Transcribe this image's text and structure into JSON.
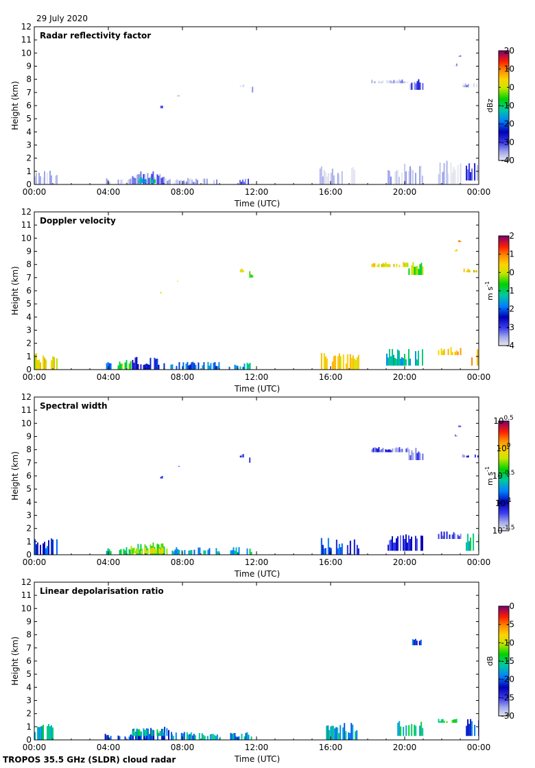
{
  "date": "29 July 2020",
  "footer": "TROPOS 35.5 GHz (SLDR) cloud radar",
  "chart_data": [
    {
      "type": "heatmap",
      "title": "Radar reflectivity factor",
      "xlabel": "Time (UTC)",
      "ylabel": "Height (km)",
      "xlim": [
        0,
        24
      ],
      "ylim": [
        0,
        12
      ],
      "x_ticks": [
        "00:00",
        "04:00",
        "08:00",
        "12:00",
        "16:00",
        "20:00",
        "00:00"
      ],
      "y_ticks": [
        "0",
        "1",
        "2",
        "3",
        "4",
        "5",
        "6",
        "7",
        "8",
        "9",
        "10",
        "11",
        "12"
      ],
      "colorbar": {
        "label": "dBz",
        "ticks": [
          "20",
          "10",
          "0",
          "-10",
          "-20",
          "-30",
          "-40"
        ],
        "range": [
          -40,
          20
        ]
      },
      "regions": [
        {
          "t0": 0.0,
          "t1": 1.2,
          "h0": 0.0,
          "h1": 1.1,
          "c": 0.02
        },
        {
          "t0": 3.8,
          "t1": 4.1,
          "h0": 0.0,
          "h1": 0.5,
          "c": 0.03
        },
        {
          "t0": 4.5,
          "t1": 5.2,
          "h0": 0.0,
          "h1": 0.6,
          "c": 0.05
        },
        {
          "t0": 5.2,
          "t1": 7.0,
          "h0": 0.0,
          "h1": 1.0,
          "c": 0.12
        },
        {
          "t0": 5.6,
          "t1": 6.6,
          "h0": 0.1,
          "h1": 0.6,
          "c": 0.45
        },
        {
          "t0": 7.0,
          "t1": 10.0,
          "h0": 0.0,
          "h1": 0.5,
          "c": 0.03
        },
        {
          "t0": 11.0,
          "t1": 11.7,
          "h0": 0.0,
          "h1": 0.5,
          "c": 0.1
        },
        {
          "t0": 6.8,
          "t1": 6.9,
          "h0": 5.8,
          "h1": 6.0,
          "c": 0.15
        },
        {
          "t0": 7.7,
          "t1": 7.8,
          "h0": 6.7,
          "h1": 6.8,
          "c": 0.03
        },
        {
          "t0": 11.1,
          "t1": 11.3,
          "h0": 7.4,
          "h1": 7.7,
          "c": 0.06
        },
        {
          "t0": 11.6,
          "t1": 11.8,
          "h0": 7.0,
          "h1": 7.5,
          "c": 0.08
        },
        {
          "t0": 15.4,
          "t1": 17.5,
          "h0": 0.0,
          "h1": 1.4,
          "c": 0.02
        },
        {
          "t0": 18.2,
          "t1": 20.2,
          "h0": 7.7,
          "h1": 8.0,
          "c": 0.04
        },
        {
          "t0": 20.2,
          "t1": 21.0,
          "h0": 7.2,
          "h1": 8.2,
          "c": 0.14
        },
        {
          "t0": 19.0,
          "t1": 21.0,
          "h0": 0.0,
          "h1": 1.6,
          "c": 0.02
        },
        {
          "t0": 21.8,
          "t1": 23.0,
          "h0": 0.0,
          "h1": 1.8,
          "c": 0.02
        },
        {
          "t0": 22.7,
          "t1": 22.8,
          "h0": 9.0,
          "h1": 9.2,
          "c": 0.03
        },
        {
          "t0": 22.9,
          "t1": 23.0,
          "h0": 9.7,
          "h1": 9.9,
          "c": 0.03
        },
        {
          "t0": 23.1,
          "t1": 23.5,
          "h0": 7.4,
          "h1": 7.7,
          "c": 0.05
        },
        {
          "t0": 23.3,
          "t1": 24.0,
          "h0": 0.3,
          "h1": 1.7,
          "c": 0.13
        },
        {
          "t0": 23.7,
          "t1": 24.0,
          "h0": 7.4,
          "h1": 7.8,
          "c": 0.03
        }
      ]
    },
    {
      "type": "heatmap",
      "title": "Doppler velocity",
      "xlabel": "Time (UTC)",
      "ylabel": "Height (km)",
      "xlim": [
        0,
        24
      ],
      "ylim": [
        0,
        12
      ],
      "x_ticks": [
        "00:00",
        "04:00",
        "08:00",
        "12:00",
        "16:00",
        "20:00",
        "00:00"
      ],
      "y_ticks": [
        "0",
        "1",
        "2",
        "3",
        "4",
        "5",
        "6",
        "7",
        "8",
        "9",
        "10",
        "11",
        "12"
      ],
      "colorbar": {
        "label": "m s-1",
        "ticks": [
          "2",
          "1",
          "0",
          "-1",
          "-2",
          "-3",
          "-4"
        ],
        "range": [
          -4,
          2
        ]
      },
      "regions": [
        {
          "t0": 0.0,
          "t1": 1.2,
          "h0": 0.0,
          "h1": 1.3,
          "c": 0.7
        },
        {
          "t0": 3.8,
          "t1": 4.1,
          "h0": 0.0,
          "h1": 0.6,
          "c": 0.3
        },
        {
          "t0": 4.5,
          "t1": 5.2,
          "h0": 0.0,
          "h1": 0.9,
          "c": 0.6
        },
        {
          "t0": 5.2,
          "t1": 7.2,
          "h0": 0.0,
          "h1": 1.0,
          "c": 0.25
        },
        {
          "t0": 7.2,
          "t1": 10.0,
          "h0": 0.0,
          "h1": 0.6,
          "c": 0.35
        },
        {
          "t0": 10.5,
          "t1": 11.7,
          "h0": 0.0,
          "h1": 0.6,
          "c": 0.4
        },
        {
          "t0": 6.8,
          "t1": 6.9,
          "h0": 5.8,
          "h1": 6.0,
          "c": 0.65
        },
        {
          "t0": 7.7,
          "t1": 7.8,
          "h0": 6.7,
          "h1": 6.8,
          "c": 0.6
        },
        {
          "t0": 11.1,
          "t1": 11.3,
          "h0": 7.4,
          "h1": 7.7,
          "c": 0.7
        },
        {
          "t0": 11.6,
          "t1": 11.8,
          "h0": 7.0,
          "h1": 7.5,
          "c": 0.55
        },
        {
          "t0": 15.4,
          "t1": 17.5,
          "h0": 0.0,
          "h1": 1.3,
          "c": 0.75
        },
        {
          "t0": 18.2,
          "t1": 20.2,
          "h0": 7.8,
          "h1": 8.2,
          "c": 0.72
        },
        {
          "t0": 20.2,
          "t1": 21.0,
          "h0": 7.2,
          "h1": 8.2,
          "c": 0.6
        },
        {
          "t0": 19.0,
          "t1": 21.0,
          "h0": 0.3,
          "h1": 1.6,
          "c": 0.45
        },
        {
          "t0": 21.8,
          "t1": 23.0,
          "h0": 1.1,
          "h1": 1.8,
          "c": 0.75
        },
        {
          "t0": 22.7,
          "t1": 22.8,
          "h0": 9.0,
          "h1": 9.2,
          "c": 0.72
        },
        {
          "t0": 22.9,
          "t1": 23.0,
          "h0": 9.7,
          "h1": 9.9,
          "c": 0.8
        },
        {
          "t0": 23.1,
          "t1": 23.5,
          "h0": 7.4,
          "h1": 7.7,
          "c": 0.72
        },
        {
          "t0": 23.3,
          "t1": 24.0,
          "h0": 0.3,
          "h1": 1.7,
          "c": 0.82
        },
        {
          "t0": 23.7,
          "t1": 24.0,
          "h0": 7.4,
          "h1": 7.8,
          "c": 0.7
        }
      ]
    },
    {
      "type": "heatmap",
      "title": "Spectral width",
      "xlabel": "Time (UTC)",
      "ylabel": "Height (km)",
      "xlim": [
        0,
        24
      ],
      "ylim": [
        0,
        12
      ],
      "x_ticks": [
        "00:00",
        "04:00",
        "08:00",
        "12:00",
        "16:00",
        "20:00",
        "00:00"
      ],
      "y_ticks": [
        "0",
        "1",
        "2",
        "3",
        "4",
        "5",
        "6",
        "7",
        "8",
        "9",
        "10",
        "11",
        "12"
      ],
      "colorbar": {
        "label": "m s-1",
        "ticks": [
          "10^0.5",
          "10^0",
          "10^-0.5",
          "10^-1",
          "10^-1.5"
        ],
        "range": [
          -1.5,
          0.5
        ]
      },
      "regions": [
        {
          "t0": 0.0,
          "t1": 1.2,
          "h0": 0.0,
          "h1": 1.3,
          "c": 0.3
        },
        {
          "t0": 3.8,
          "t1": 4.1,
          "h0": 0.0,
          "h1": 0.5,
          "c": 0.45
        },
        {
          "t0": 4.5,
          "t1": 5.2,
          "h0": 0.0,
          "h1": 0.8,
          "c": 0.5
        },
        {
          "t0": 5.2,
          "t1": 7.2,
          "h0": 0.0,
          "h1": 1.0,
          "c": 0.55
        },
        {
          "t0": 5.3,
          "t1": 7.0,
          "h0": 0.1,
          "h1": 0.6,
          "c": 0.68
        },
        {
          "t0": 7.2,
          "t1": 10.0,
          "h0": 0.0,
          "h1": 0.6,
          "c": 0.4
        },
        {
          "t0": 10.5,
          "t1": 11.7,
          "h0": 0.0,
          "h1": 0.6,
          "c": 0.45
        },
        {
          "t0": 6.8,
          "t1": 6.9,
          "h0": 5.8,
          "h1": 6.0,
          "c": 0.15
        },
        {
          "t0": 7.7,
          "t1": 7.8,
          "h0": 6.7,
          "h1": 6.8,
          "c": 0.15
        },
        {
          "t0": 11.1,
          "t1": 11.3,
          "h0": 7.4,
          "h1": 7.7,
          "c": 0.15
        },
        {
          "t0": 11.6,
          "t1": 11.8,
          "h0": 7.0,
          "h1": 7.5,
          "c": 0.15
        },
        {
          "t0": 15.4,
          "t1": 17.5,
          "h0": 0.0,
          "h1": 1.3,
          "c": 0.28
        },
        {
          "t0": 18.2,
          "t1": 20.2,
          "h0": 7.8,
          "h1": 8.2,
          "c": 0.15
        },
        {
          "t0": 20.2,
          "t1": 21.0,
          "h0": 7.2,
          "h1": 8.2,
          "c": 0.15
        },
        {
          "t0": 19.0,
          "t1": 21.0,
          "h0": 0.3,
          "h1": 1.6,
          "c": 0.2
        },
        {
          "t0": 21.8,
          "t1": 23.0,
          "h0": 1.2,
          "h1": 1.8,
          "c": 0.15
        },
        {
          "t0": 22.7,
          "t1": 22.8,
          "h0": 9.0,
          "h1": 9.2,
          "c": 0.15
        },
        {
          "t0": 22.9,
          "t1": 23.0,
          "h0": 9.7,
          "h1": 9.9,
          "c": 0.15
        },
        {
          "t0": 23.1,
          "t1": 23.5,
          "h0": 7.4,
          "h1": 7.7,
          "c": 0.15
        },
        {
          "t0": 23.3,
          "t1": 24.0,
          "h0": 0.3,
          "h1": 1.7,
          "c": 0.45
        },
        {
          "t0": 23.7,
          "t1": 24.0,
          "h0": 7.4,
          "h1": 7.8,
          "c": 0.15
        }
      ]
    },
    {
      "type": "heatmap",
      "title": "Linear depolarisation ratio",
      "xlabel": "Time (UTC)",
      "ylabel": "Height (km)",
      "xlim": [
        0,
        24
      ],
      "ylim": [
        0,
        12
      ],
      "x_ticks": [
        "00:00",
        "04:00",
        "08:00",
        "12:00",
        "16:00",
        "20:00",
        "00:00"
      ],
      "y_ticks": [
        "0",
        "1",
        "2",
        "3",
        "4",
        "5",
        "6",
        "7",
        "8",
        "9",
        "10",
        "11",
        "12"
      ],
      "colorbar": {
        "label": "dB",
        "ticks": [
          "0",
          "-5",
          "-10",
          "-15",
          "-20",
          "-25",
          "-30"
        ],
        "range": [
          -30,
          0
        ]
      },
      "regions": [
        {
          "t0": 0.0,
          "t1": 1.1,
          "h0": 0.0,
          "h1": 1.3,
          "c": 0.45
        },
        {
          "t0": 3.8,
          "t1": 4.1,
          "h0": 0.0,
          "h1": 0.5,
          "c": 0.3
        },
        {
          "t0": 4.5,
          "t1": 5.2,
          "h0": 0.0,
          "h1": 0.6,
          "c": 0.35
        },
        {
          "t0": 5.0,
          "t1": 7.4,
          "h0": 0.0,
          "h1": 1.0,
          "c": 0.3
        },
        {
          "t0": 5.2,
          "t1": 7.2,
          "h0": 0.3,
          "h1": 0.9,
          "c": 0.45
        },
        {
          "t0": 7.4,
          "t1": 10.0,
          "h0": 0.0,
          "h1": 0.6,
          "c": 0.4
        },
        {
          "t0": 10.5,
          "t1": 11.7,
          "h0": 0.0,
          "h1": 0.6,
          "c": 0.4
        },
        {
          "t0": 15.6,
          "t1": 17.5,
          "h0": 0.0,
          "h1": 1.3,
          "c": 0.42
        },
        {
          "t0": 20.4,
          "t1": 20.9,
          "h0": 7.2,
          "h1": 7.7,
          "c": 0.3
        },
        {
          "t0": 19.6,
          "t1": 21.0,
          "h0": 0.3,
          "h1": 1.5,
          "c": 0.45
        },
        {
          "t0": 21.8,
          "t1": 22.8,
          "h0": 1.3,
          "h1": 1.6,
          "c": 0.5
        },
        {
          "t0": 23.3,
          "t1": 24.0,
          "h0": 0.3,
          "h1": 1.7,
          "c": 0.3
        }
      ]
    }
  ]
}
